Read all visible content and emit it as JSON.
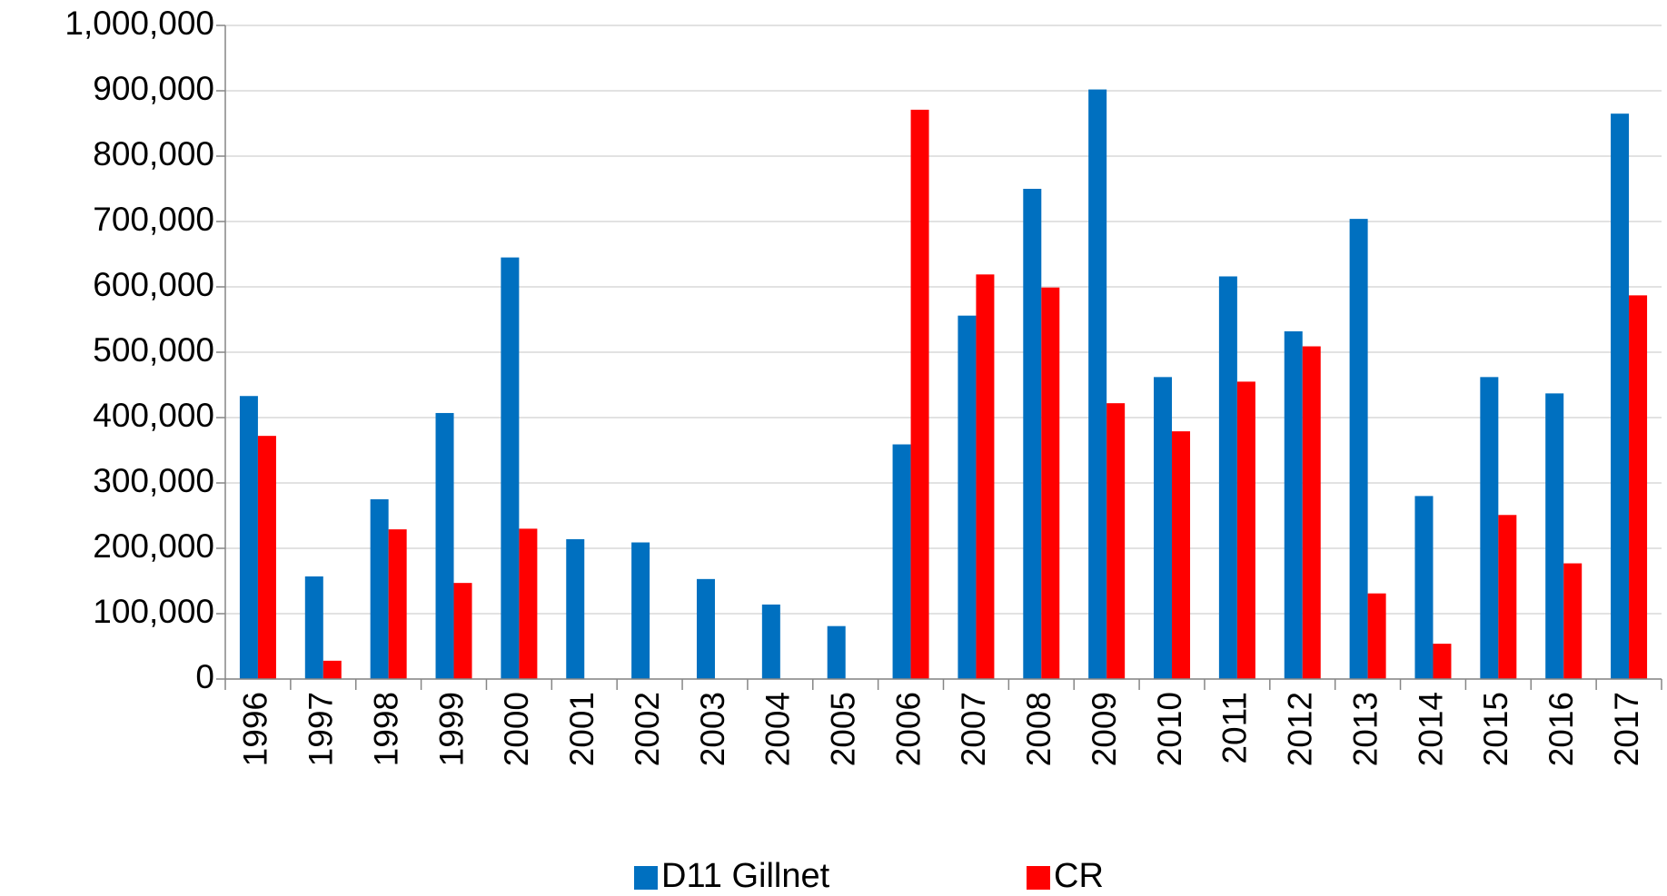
{
  "chart_data": {
    "type": "bar",
    "categories": [
      "1996",
      "1997",
      "1998",
      "1999",
      "2000",
      "2001",
      "2002",
      "2003",
      "2004",
      "2005",
      "2006",
      "2007",
      "2008",
      "2009",
      "2010",
      "2011",
      "2012",
      "2013",
      "2014",
      "2015",
      "2016",
      "2017"
    ],
    "series": [
      {
        "name": "D11 Gillnet",
        "color": "#0070c0",
        "values": [
          433000,
          157000,
          275000,
          407000,
          645000,
          214000,
          209000,
          153000,
          114000,
          81000,
          359000,
          556000,
          750000,
          902000,
          462000,
          616000,
          532000,
          704000,
          280000,
          462000,
          437000,
          865000
        ]
      },
      {
        "name": "CR",
        "color": "#ff0000",
        "values": [
          372000,
          28000,
          229000,
          147000,
          230000,
          null,
          null,
          null,
          null,
          null,
          871000,
          619000,
          599000,
          422000,
          379000,
          455000,
          509000,
          131000,
          54000,
          251000,
          177000,
          587000
        ]
      }
    ],
    "ylim": [
      0,
      1000000
    ],
    "yticks": [
      0,
      {
        "value": 100000,
        "label": "100,000"
      },
      {
        "value": 200000,
        "label": "200,000"
      },
      {
        "value": 300000,
        "label": "300,000"
      },
      {
        "value": 400000,
        "label": "400,000"
      },
      {
        "value": 500000,
        "label": "500,000"
      },
      {
        "value": 600000,
        "label": "600,000"
      },
      {
        "value": 700000,
        "label": "700,000"
      },
      {
        "value": 800000,
        "label": "800,000"
      },
      {
        "value": 900000,
        "label": "900,000"
      },
      {
        "value": 1000000,
        "label": "1,000,000"
      }
    ],
    "grid": true,
    "legend": "bottom"
  }
}
